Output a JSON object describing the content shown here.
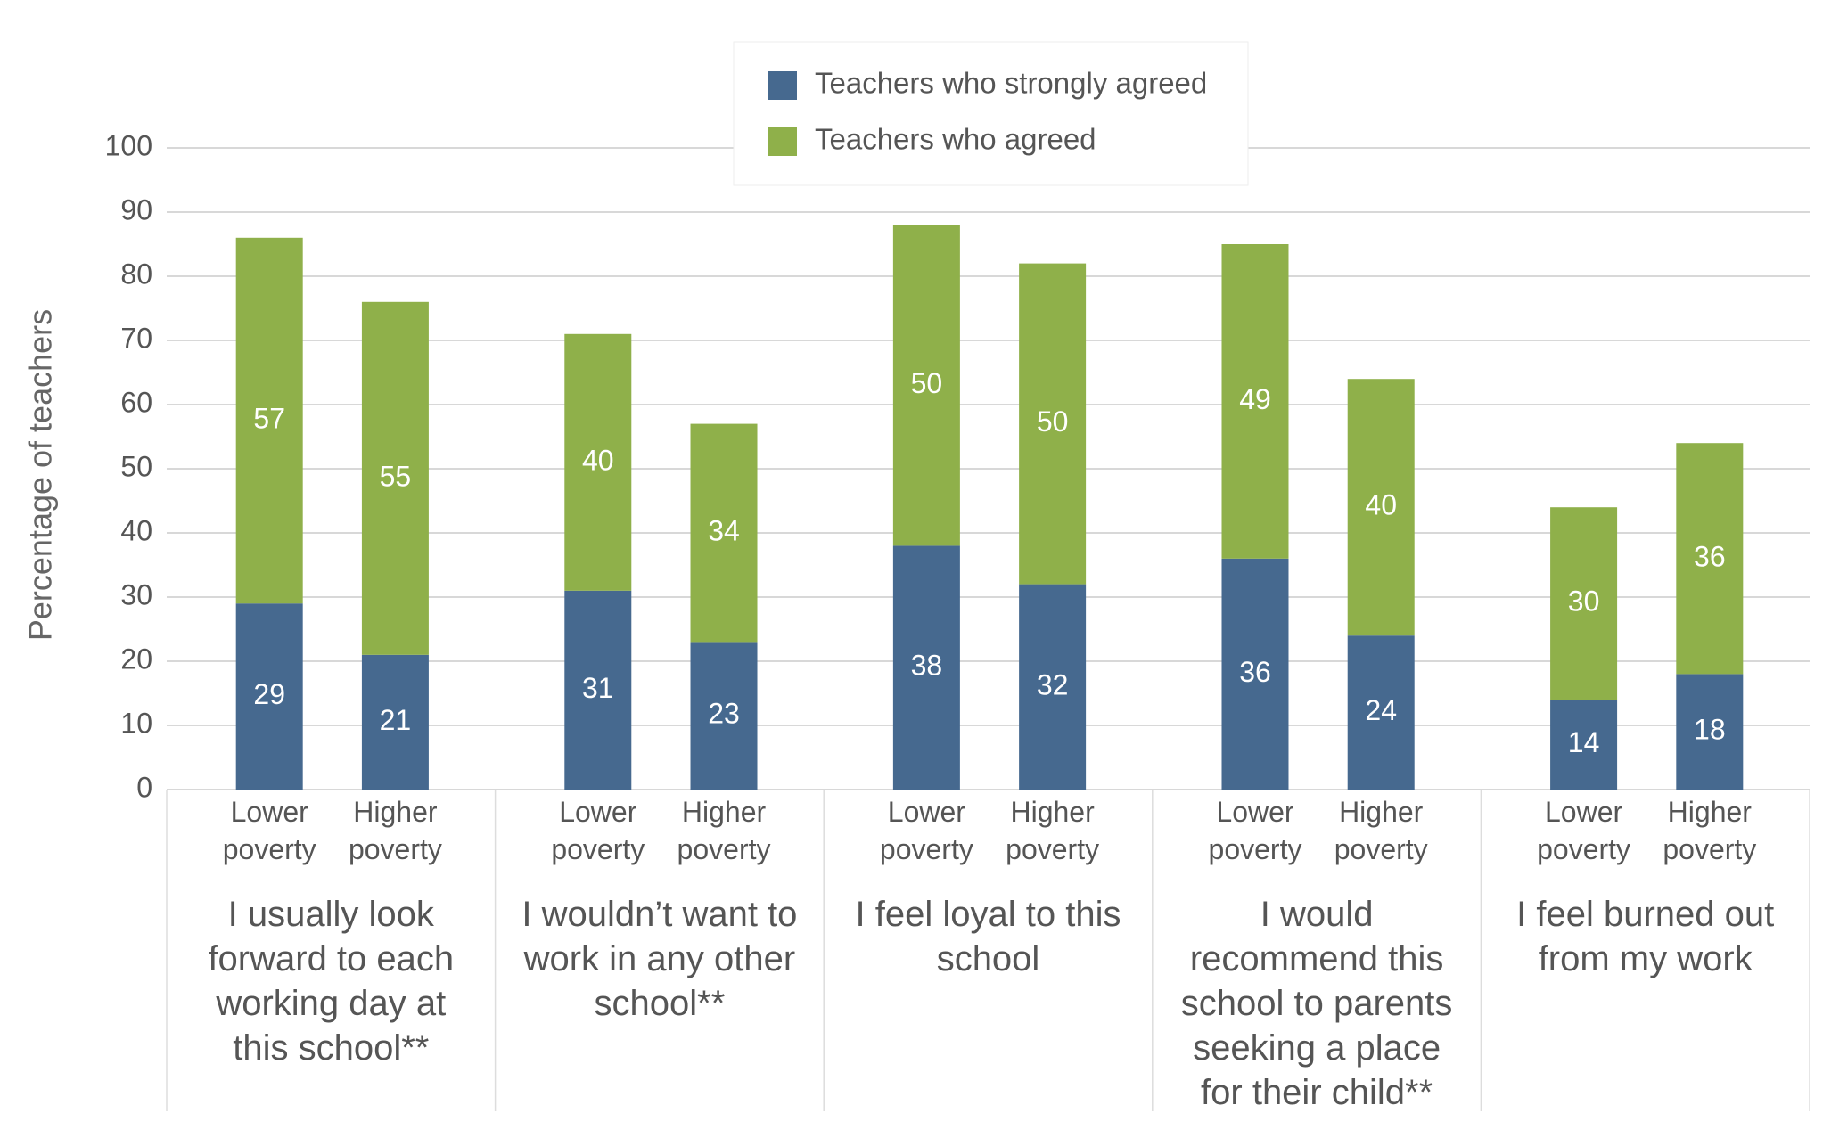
{
  "chart_data": {
    "type": "stacked_bar",
    "y_axis_label": "Percentage of teachers",
    "ylim": [
      0,
      100
    ],
    "yticks": [
      0,
      10,
      20,
      30,
      40,
      50,
      60,
      70,
      80,
      90,
      100
    ],
    "grid": true,
    "legend_position": "top",
    "categories": [
      "Lower poverty",
      "Higher poverty",
      "Lower poverty",
      "Higher poverty",
      "Lower poverty",
      "Higher poverty",
      "Lower poverty",
      "Higher poverty",
      "Lower poverty",
      "Higher poverty"
    ],
    "groups": [
      "I usually look forward to each working day at this school**",
      "I wouldn’t want to work in any other school**",
      "I feel loyal to this school",
      "I would recommend this school to parents seeking a place for their child**",
      "I feel burned out from my work"
    ],
    "series": [
      {
        "name": "Teachers who strongly agreed",
        "color": "#46698f",
        "values": [
          29,
          21,
          31,
          23,
          38,
          32,
          36,
          24,
          14,
          18
        ]
      },
      {
        "name": "Teachers who agreed",
        "color": "#8fb04a",
        "values": [
          57,
          55,
          40,
          34,
          50,
          50,
          49,
          40,
          30,
          36
        ]
      }
    ]
  }
}
